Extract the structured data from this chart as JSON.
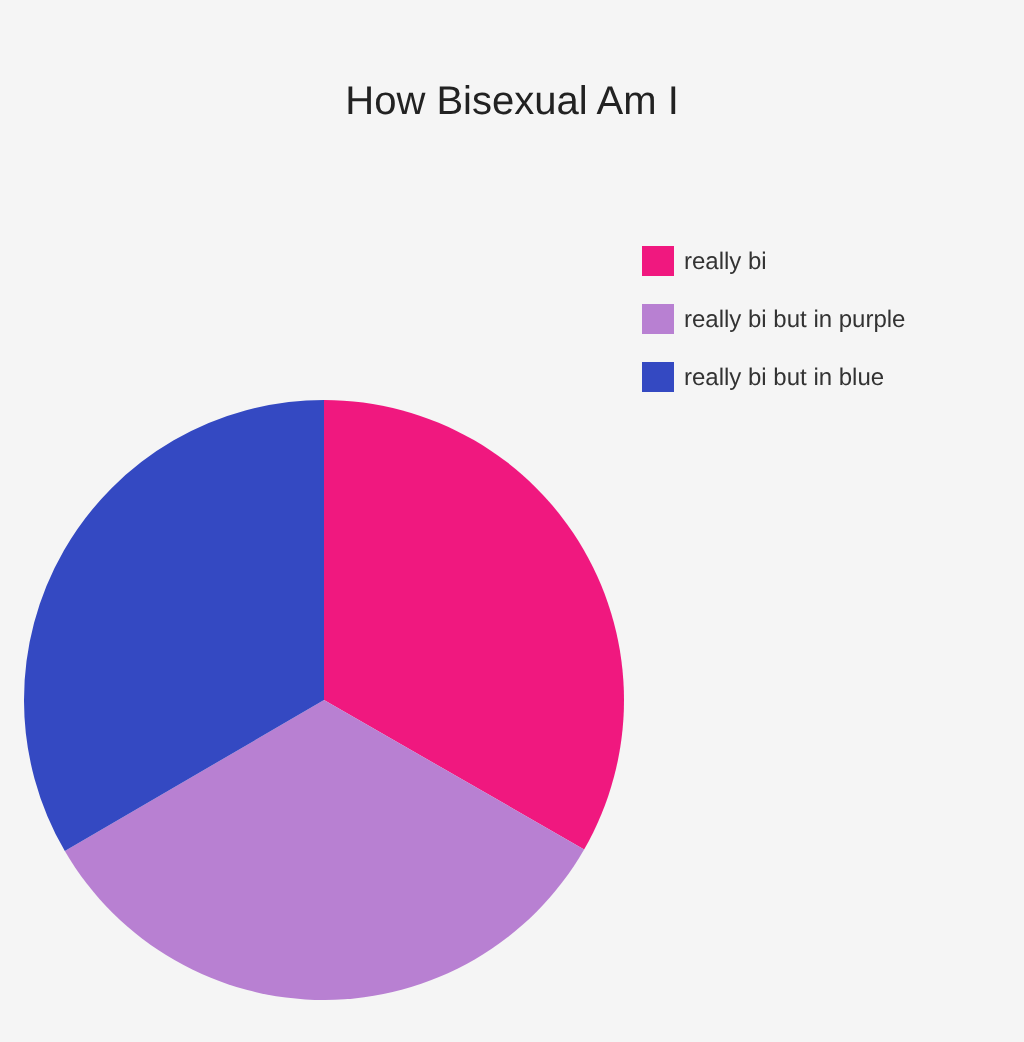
{
  "chart_data": {
    "type": "pie",
    "title": "How Bisexual Am I",
    "categories": [
      "really bi",
      "really bi but in purple",
      "really bi but in blue"
    ],
    "values": [
      33.3,
      33.3,
      33.4
    ],
    "colors": [
      "#f0187f",
      "#b880d2",
      "#3449c2"
    ],
    "legend": "top right"
  }
}
